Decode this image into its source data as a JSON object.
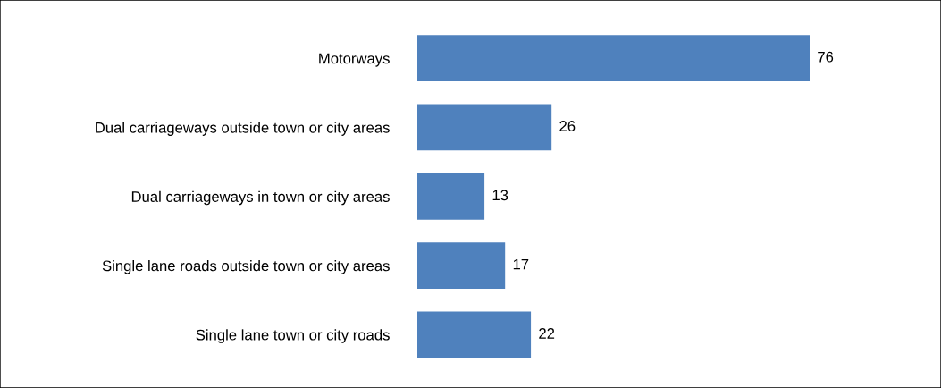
{
  "chart_data": {
    "type": "bar",
    "orientation": "horizontal",
    "categories": [
      "Motorways",
      "Dual carriageways outside town or city areas",
      "Dual carriageways in town or city areas",
      "Single lane roads outside town or city areas",
      "Single lane town or city roads"
    ],
    "values": [
      76,
      26,
      13,
      17,
      22
    ],
    "color": "#4f81bd",
    "data_labels": true,
    "grid": false,
    "legend": false
  }
}
